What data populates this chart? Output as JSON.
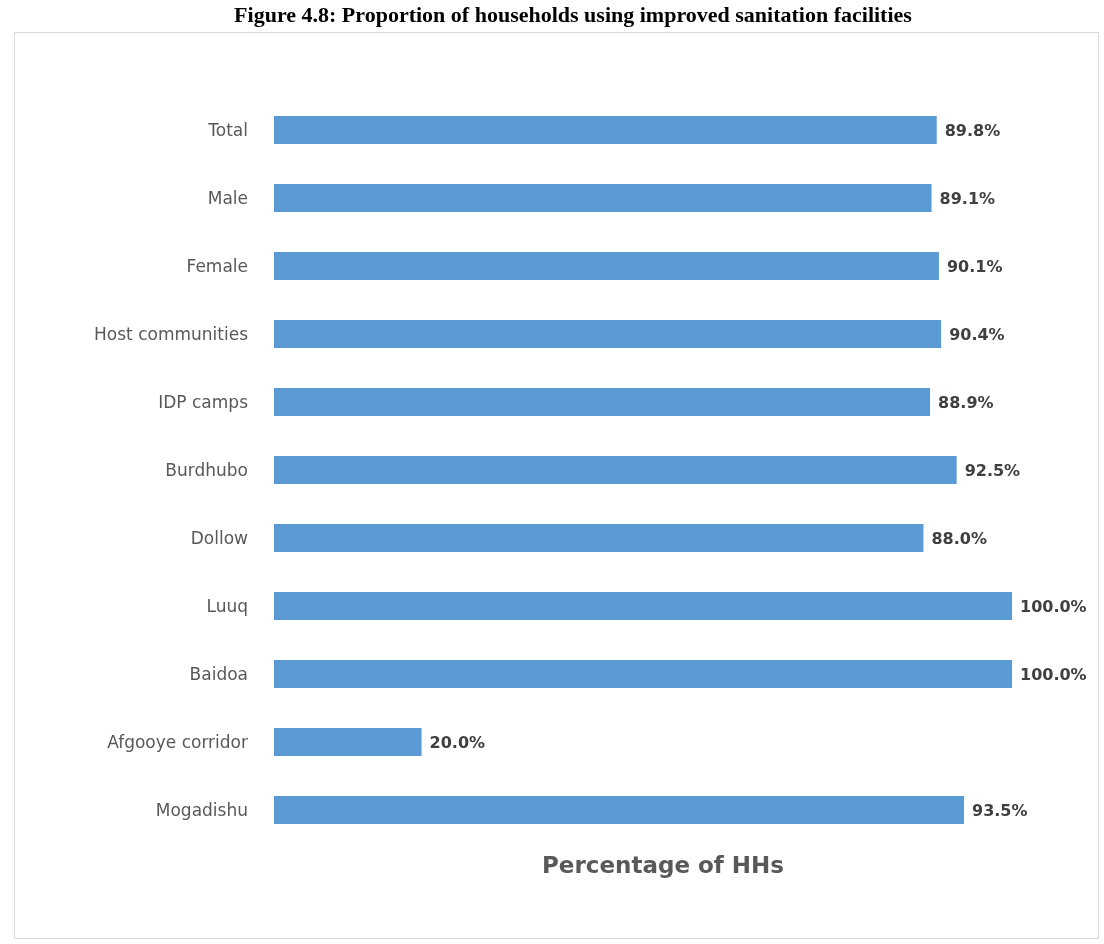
{
  "chart_data": {
    "type": "bar",
    "orientation": "horizontal",
    "title": "Figure 4.8: Proportion of households using improved sanitation facilities",
    "xlabel": "Percentage of HHs",
    "categories": [
      "Total",
      "Male",
      "Female",
      "Host communities",
      "IDP camps",
      "Burdhubo",
      "Dollow",
      "Luuq",
      "Baidoa",
      "Afgooye corridor",
      "Mogadishu"
    ],
    "values": [
      89.8,
      89.1,
      90.1,
      90.4,
      88.9,
      92.5,
      88.0,
      100.0,
      100.0,
      20.0,
      93.5
    ],
    "value_labels": [
      "89.8%",
      "89.1%",
      "90.1%",
      "90.4%",
      "88.9%",
      "92.5%",
      "88.0%",
      "100.0%",
      "100.0%",
      "20.0%",
      "93.5%"
    ],
    "color": "#5b9bd5",
    "tick_labels": "y"
  }
}
